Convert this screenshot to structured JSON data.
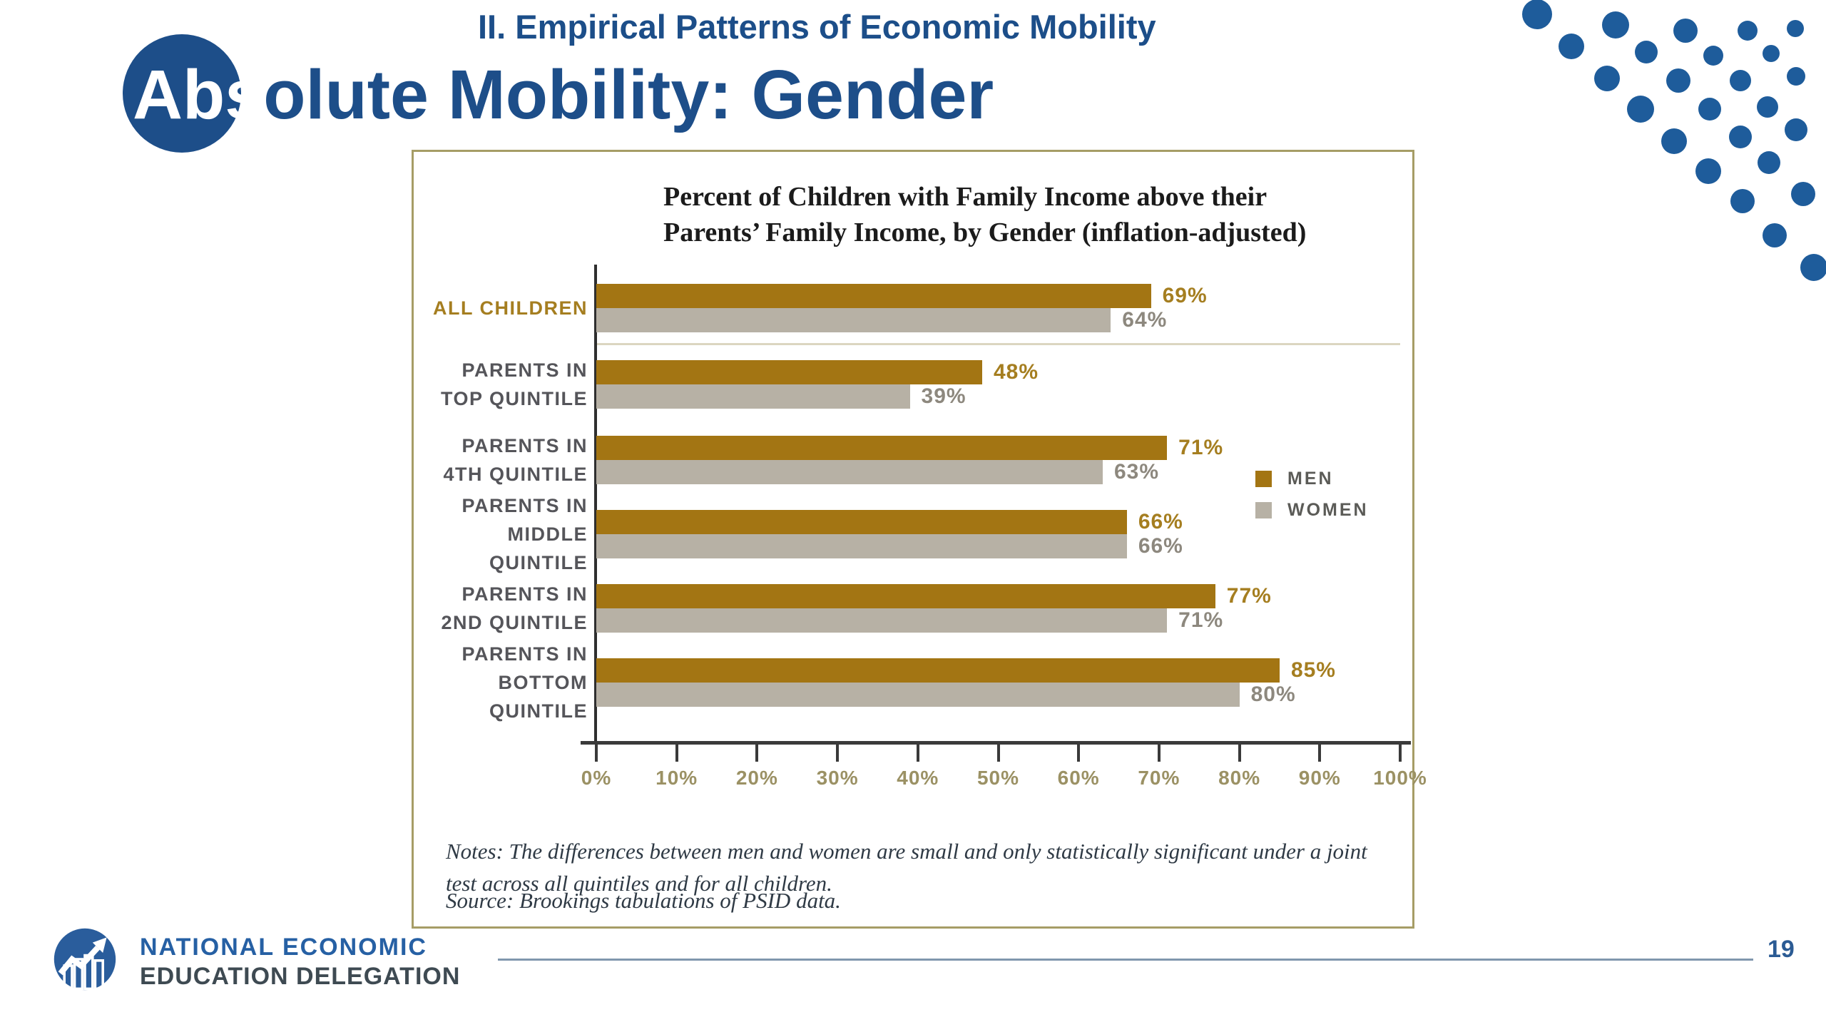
{
  "slide": {
    "section_title": "II. Empirical Patterns of Economic Mobility",
    "title_highlight": "Abs",
    "title_rest": "olute Mobility: Gender",
    "page_number": "19"
  },
  "logo": {
    "line1": "NATIONAL ECONOMIC",
    "line2": "EDUCATION DELEGATION"
  },
  "chart_data": {
    "type": "bar",
    "orientation": "horizontal",
    "title_line1": "Percent of Children with Family Income above their",
    "title_line2": "Parents’ Family Income, by Gender (inflation-adjusted)",
    "categories": [
      {
        "lines": [
          "ALL CHILDREN"
        ],
        "highlight": true
      },
      {
        "lines": [
          "PARENTS IN",
          "TOP QUINTILE"
        ],
        "highlight": false
      },
      {
        "lines": [
          "PARENTS IN",
          "4TH QUINTILE"
        ],
        "highlight": false
      },
      {
        "lines": [
          "PARENTS IN",
          "MIDDLE QUINTILE"
        ],
        "highlight": false
      },
      {
        "lines": [
          "PARENTS IN",
          "2ND QUINTILE"
        ],
        "highlight": false
      },
      {
        "lines": [
          "PARENTS IN",
          "BOTTOM QUINTILE"
        ],
        "highlight": false
      }
    ],
    "series": [
      {
        "name": "MEN",
        "color": "#a37513",
        "values": [
          69,
          48,
          71,
          66,
          77,
          85
        ]
      },
      {
        "name": "WOMEN",
        "color": "#b7b1a5",
        "values": [
          64,
          39,
          63,
          66,
          71,
          80
        ]
      }
    ],
    "value_suffix": "%",
    "xlim": [
      0,
      100
    ],
    "x_ticks": [
      "0%",
      "10%",
      "20%",
      "30%",
      "40%",
      "50%",
      "60%",
      "70%",
      "80%",
      "90%",
      "100%"
    ],
    "legend_position": "right",
    "grid": false,
    "notes": "Notes: The differences between men and women are small and only statistically significant under a joint test across all quintiles and for all children.",
    "source": "Source: Brookings tabulations of PSID data."
  },
  "colors": {
    "accent_blue": "#1d4e89",
    "men_gold": "#a37513",
    "women_gray": "#b7b1a5",
    "panel_border": "#a69d66",
    "axis_label_olive": "#9b9164"
  }
}
